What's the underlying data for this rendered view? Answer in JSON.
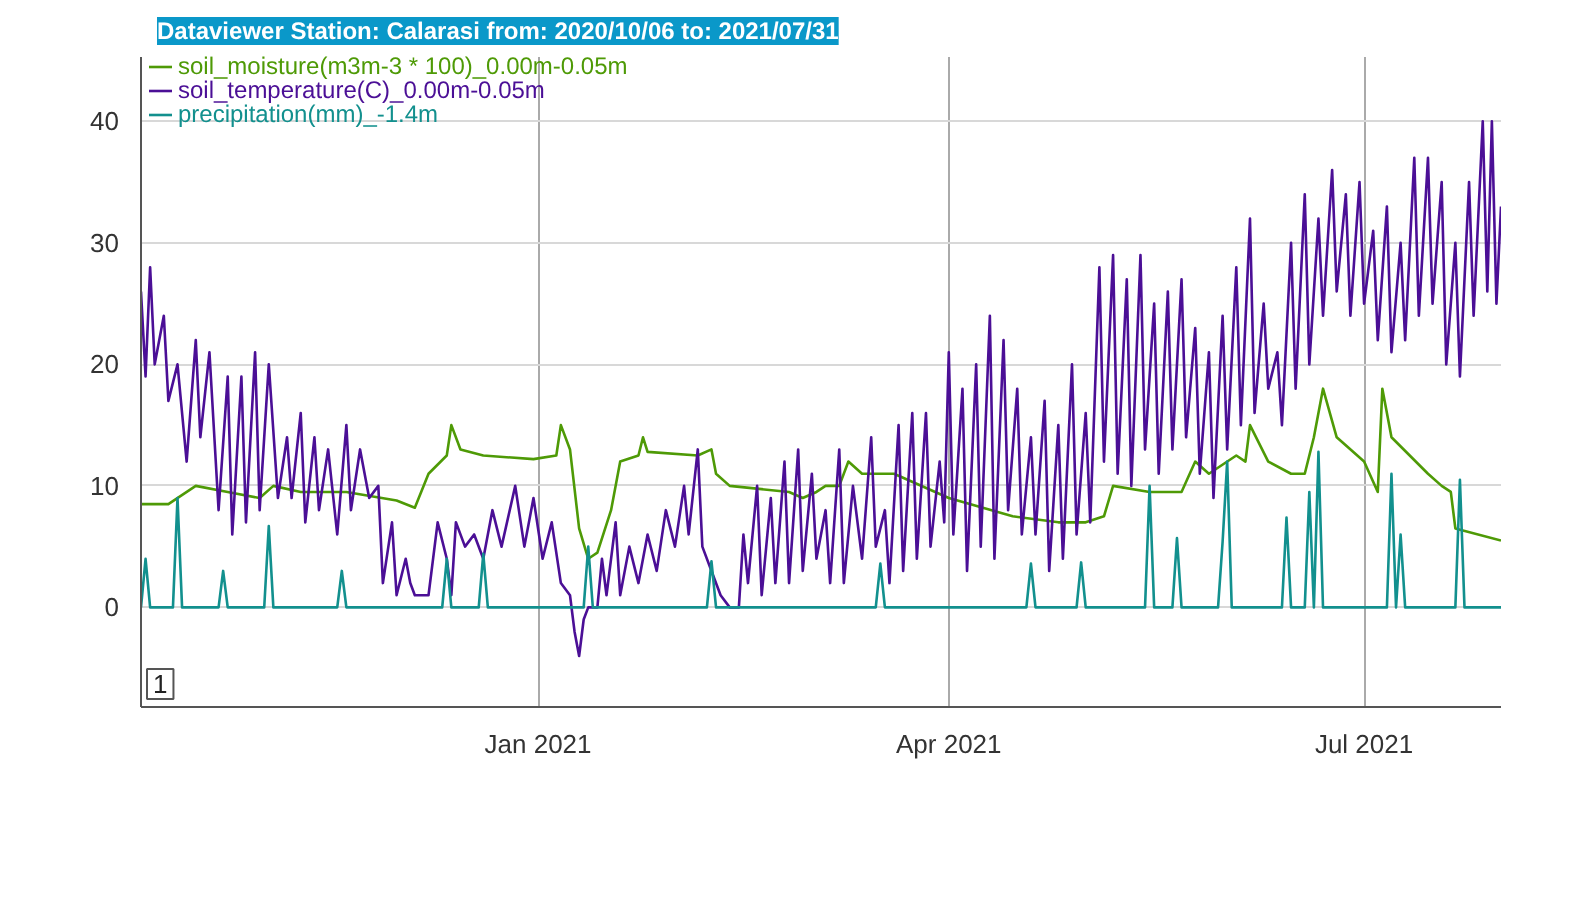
{
  "chart_data": {
    "type": "line",
    "title": "Dataviewer Station: Calarasi from: 2020/10/06 to: 2021/07/31",
    "xlim": [
      "2020-10-06",
      "2021-07-31"
    ],
    "xticks": [
      {
        "value": "2021-01-01",
        "label": "Jan 2021"
      },
      {
        "value": "2021-04-01",
        "label": "Apr 2021"
      },
      {
        "value": "2021-07-01",
        "label": "Jul 2021"
      }
    ],
    "ylim": [
      -8.2,
      45.3
    ],
    "yticks": [
      0,
      10,
      20,
      30,
      40
    ],
    "grid": true,
    "legend": "top left",
    "line_style": "solid",
    "marker": "none",
    "annotations": [
      "1"
    ],
    "series": [
      {
        "name": "soil_moisture(m3m-3 * 100)_0.00m-0.05m",
        "color": "#4e9a06",
        "x": [
          "2020-10-06",
          "2020-10-12",
          "2020-10-18",
          "2020-10-25",
          "2020-11-01",
          "2020-11-04",
          "2020-11-10",
          "2020-11-20",
          "2020-12-01",
          "2020-12-05",
          "2020-12-08",
          "2020-12-12",
          "2020-12-13",
          "2020-12-15",
          "2020-12-20",
          "2020-12-31",
          "2021-01-05",
          "2021-01-06",
          "2021-01-08",
          "2021-01-10",
          "2021-01-12",
          "2021-01-14",
          "2021-01-17",
          "2021-01-19",
          "2021-01-23",
          "2021-01-24",
          "2021-01-25",
          "2021-02-05",
          "2021-02-08",
          "2021-02-09",
          "2021-02-12",
          "2021-02-25",
          "2021-02-28",
          "2021-03-03",
          "2021-03-05",
          "2021-03-08",
          "2021-03-10",
          "2021-03-13",
          "2021-03-20",
          "2021-04-01",
          "2021-04-15",
          "2021-04-25",
          "2021-05-01",
          "2021-05-05",
          "2021-05-07",
          "2021-05-15",
          "2021-05-22",
          "2021-05-25",
          "2021-05-28",
          "2021-06-03",
          "2021-06-05",
          "2021-06-06",
          "2021-06-10",
          "2021-06-15",
          "2021-06-18",
          "2021-06-20",
          "2021-06-22",
          "2021-06-25",
          "2021-07-01",
          "2021-07-04",
          "2021-07-05",
          "2021-07-07",
          "2021-07-15",
          "2021-07-18",
          "2021-07-20",
          "2021-07-21",
          "2021-07-31"
        ],
        "values": [
          8.5,
          8.5,
          10,
          9.5,
          9,
          10,
          9.5,
          9.5,
          8.8,
          8.2,
          11,
          12.5,
          15,
          13,
          12.5,
          12.2,
          12.5,
          15,
          13,
          6.5,
          4,
          4.5,
          8,
          12,
          12.5,
          14,
          12.8,
          12.5,
          13,
          11,
          10,
          9.5,
          9,
          9.5,
          10,
          10,
          12,
          11,
          11,
          9,
          7.5,
          7,
          7,
          7.5,
          10,
          9.5,
          9.5,
          12,
          11,
          12.5,
          12,
          15,
          12,
          11,
          11,
          14,
          18,
          14,
          12,
          9.5,
          18,
          14,
          11,
          10,
          9.5,
          6.5,
          5.5
        ]
      },
      {
        "name": "soil_temperature(C)_0.00m-0.05m",
        "color": "#4b0f96",
        "x": [
          "2020-10-06",
          "2020-10-07",
          "2020-10-08",
          "2020-10-09",
          "2020-10-11",
          "2020-10-12",
          "2020-10-14",
          "2020-10-16",
          "2020-10-18",
          "2020-10-19",
          "2020-10-21",
          "2020-10-23",
          "2020-10-25",
          "2020-10-26",
          "2020-10-28",
          "2020-10-29",
          "2020-10-31",
          "2020-11-01",
          "2020-11-03",
          "2020-11-05",
          "2020-11-07",
          "2020-11-08",
          "2020-11-10",
          "2020-11-11",
          "2020-11-13",
          "2020-11-14",
          "2020-11-16",
          "2020-11-18",
          "2020-11-20",
          "2020-11-21",
          "2020-11-23",
          "2020-11-25",
          "2020-11-27",
          "2020-11-28",
          "2020-11-30",
          "2020-12-01",
          "2020-12-03",
          "2020-12-04",
          "2020-12-05",
          "2020-12-08",
          "2020-12-10",
          "2020-12-12",
          "2020-12-13",
          "2020-12-14",
          "2020-12-16",
          "2020-12-18",
          "2020-12-20",
          "2020-12-22",
          "2020-12-24",
          "2020-12-27",
          "2020-12-29",
          "2020-12-31",
          "2021-01-02",
          "2021-01-04",
          "2021-01-06",
          "2021-01-08",
          "2021-01-09",
          "2021-01-10",
          "2021-01-11",
          "2021-01-12",
          "2021-01-14",
          "2021-01-15",
          "2021-01-16",
          "2021-01-18",
          "2021-01-19",
          "2021-01-21",
          "2021-01-23",
          "2021-01-25",
          "2021-01-27",
          "2021-01-29",
          "2021-01-31",
          "2021-02-02",
          "2021-02-03",
          "2021-02-05",
          "2021-02-06",
          "2021-02-08",
          "2021-02-10",
          "2021-02-12",
          "2021-02-14",
          "2021-02-15",
          "2021-02-16",
          "2021-02-18",
          "2021-02-19",
          "2021-02-21",
          "2021-02-22",
          "2021-02-24",
          "2021-02-25",
          "2021-02-27",
          "2021-02-28",
          "2021-03-02",
          "2021-03-03",
          "2021-03-05",
          "2021-03-06",
          "2021-03-08",
          "2021-03-09",
          "2021-03-11",
          "2021-03-13",
          "2021-03-15",
          "2021-03-16",
          "2021-03-18",
          "2021-03-19",
          "2021-03-21",
          "2021-03-22",
          "2021-03-24",
          "2021-03-25",
          "2021-03-27",
          "2021-03-28",
          "2021-03-30",
          "2021-03-31",
          "2021-04-01",
          "2021-04-02",
          "2021-04-04",
          "2021-04-05",
          "2021-04-07",
          "2021-04-08",
          "2021-04-10",
          "2021-04-11",
          "2021-04-13",
          "2021-04-14",
          "2021-04-16",
          "2021-04-17",
          "2021-04-19",
          "2021-04-20",
          "2021-04-22",
          "2021-04-23",
          "2021-04-25",
          "2021-04-26",
          "2021-04-28",
          "2021-04-29",
          "2021-05-01",
          "2021-05-02",
          "2021-05-04",
          "2021-05-05",
          "2021-05-07",
          "2021-05-08",
          "2021-05-10",
          "2021-05-11",
          "2021-05-13",
          "2021-05-14",
          "2021-05-16",
          "2021-05-17",
          "2021-05-19",
          "2021-05-20",
          "2021-05-22",
          "2021-05-23",
          "2021-05-25",
          "2021-05-26",
          "2021-05-28",
          "2021-05-29",
          "2021-05-31",
          "2021-06-01",
          "2021-06-03",
          "2021-06-04",
          "2021-06-06",
          "2021-06-07",
          "2021-06-09",
          "2021-06-10",
          "2021-06-12",
          "2021-06-13",
          "2021-06-15",
          "2021-06-16",
          "2021-06-18",
          "2021-06-19",
          "2021-06-21",
          "2021-06-22",
          "2021-06-24",
          "2021-06-25",
          "2021-06-27",
          "2021-06-28",
          "2021-06-30",
          "2021-07-01",
          "2021-07-03",
          "2021-07-04",
          "2021-07-06",
          "2021-07-07",
          "2021-07-09",
          "2021-07-10",
          "2021-07-12",
          "2021-07-13",
          "2021-07-15",
          "2021-07-16",
          "2021-07-18",
          "2021-07-19",
          "2021-07-21",
          "2021-07-22",
          "2021-07-24",
          "2021-07-25",
          "2021-07-27",
          "2021-07-28",
          "2021-07-29",
          "2021-07-30",
          "2021-07-31"
        ],
        "values": [
          26,
          19,
          28,
          20,
          24,
          17,
          20,
          12,
          22,
          14,
          21,
          8,
          19,
          6,
          19,
          7,
          21,
          8,
          20,
          9,
          14,
          9,
          16,
          7,
          14,
          8,
          13,
          6,
          15,
          8,
          13,
          9,
          10,
          2,
          7,
          1,
          4,
          2,
          1,
          1,
          7,
          4,
          1,
          7,
          5,
          6,
          4,
          8,
          5,
          10,
          5,
          9,
          4,
          7,
          2,
          1,
          -2,
          -4,
          -1,
          0,
          0,
          4,
          1,
          7,
          1,
          5,
          2,
          6,
          3,
          8,
          5,
          10,
          6,
          13,
          5,
          3,
          1,
          0,
          0,
          6,
          2,
          10,
          1,
          9,
          2,
          12,
          2,
          13,
          3,
          11,
          4,
          8,
          2,
          13,
          2,
          10,
          4,
          14,
          5,
          8,
          2,
          15,
          3,
          16,
          4,
          16,
          5,
          12,
          7,
          21,
          6,
          18,
          3,
          20,
          5,
          24,
          4,
          22,
          8,
          18,
          6,
          14,
          6,
          17,
          3,
          15,
          4,
          20,
          6,
          16,
          7,
          28,
          12,
          29,
          11,
          27,
          10,
          29,
          13,
          25,
          11,
          26,
          13,
          27,
          14,
          23,
          11,
          21,
          9,
          24,
          13,
          28,
          15,
          32,
          16,
          25,
          18,
          21,
          15,
          30,
          18,
          34,
          20,
          32,
          24,
          36,
          26,
          34,
          24,
          35,
          25,
          31,
          22,
          33,
          21,
          30,
          22,
          37,
          24,
          37,
          25,
          35,
          20,
          30,
          19,
          35,
          24,
          40,
          26,
          40,
          25,
          33
        ]
      },
      {
        "name": "precipitation(mm)_-1.4m",
        "color": "#12908e",
        "x": [
          "2020-10-06",
          "2020-10-07",
          "2020-10-08",
          "2020-10-09",
          "2020-10-13",
          "2020-10-14",
          "2020-10-15",
          "2020-10-23",
          "2020-10-24",
          "2020-10-25",
          "2020-11-02",
          "2020-11-03",
          "2020-11-04",
          "2020-11-18",
          "2020-11-19",
          "2020-11-20",
          "2020-12-11",
          "2020-12-12",
          "2020-12-13",
          "2020-12-19",
          "2020-12-20",
          "2020-12-21",
          "2021-01-11",
          "2021-01-12",
          "2021-01-13",
          "2021-02-07",
          "2021-02-08",
          "2021-02-09",
          "2021-03-16",
          "2021-03-17",
          "2021-03-18",
          "2021-04-18",
          "2021-04-19",
          "2021-04-20",
          "2021-04-29",
          "2021-04-30",
          "2021-05-01",
          "2021-05-14",
          "2021-05-15",
          "2021-05-16",
          "2021-05-20",
          "2021-05-21",
          "2021-05-22",
          "2021-05-30",
          "2021-05-31",
          "2021-06-01",
          "2021-06-02",
          "2021-06-13",
          "2021-06-14",
          "2021-06-15",
          "2021-06-18",
          "2021-06-19",
          "2021-06-20",
          "2021-06-21",
          "2021-06-22",
          "2021-07-06",
          "2021-07-07",
          "2021-07-08",
          "2021-07-09",
          "2021-07-10",
          "2021-07-21",
          "2021-07-22",
          "2021-07-23",
          "2021-07-31"
        ],
        "values": [
          0,
          4,
          0,
          0,
          0,
          9,
          0,
          0,
          3,
          0,
          0,
          6.7,
          0,
          0,
          3,
          0,
          0,
          4,
          0,
          0,
          4.4,
          0,
          0,
          5,
          0,
          0,
          3.8,
          0,
          0,
          3.6,
          0,
          0,
          3.6,
          0,
          0,
          3.7,
          0,
          0,
          10,
          0,
          0,
          5.7,
          0,
          0,
          5.4,
          12,
          0,
          0,
          7.4,
          0,
          0,
          9.5,
          0,
          12.8,
          0,
          0,
          11,
          0,
          6,
          0,
          0,
          10.5,
          0,
          0
        ]
      }
    ]
  }
}
